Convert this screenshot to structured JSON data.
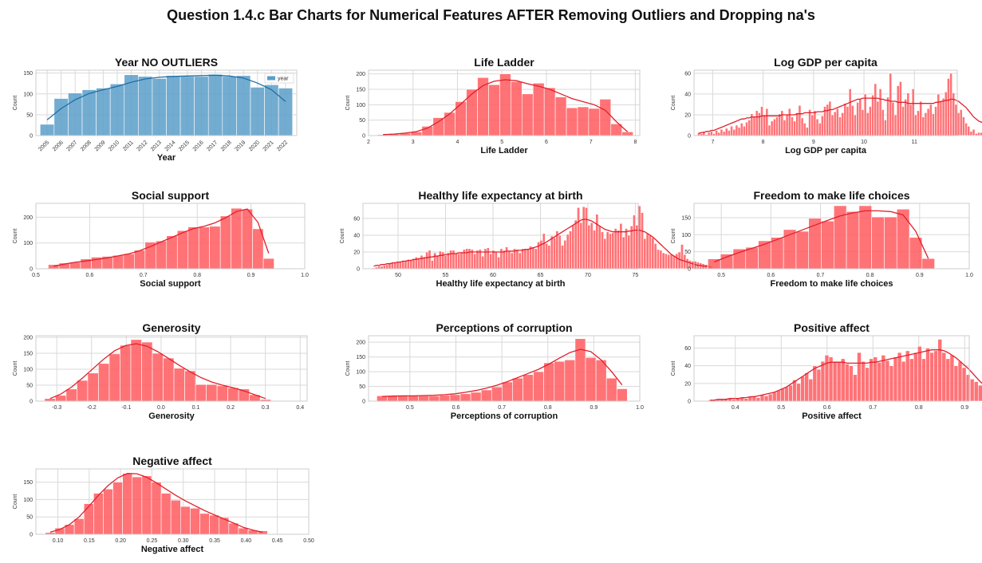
{
  "suptitle": "Question 1.4.c Bar Charts for Numerical Features AFTER Removing Outliers and Dropping na's",
  "chart_data": [
    {
      "type": "bar",
      "title": "Year NO OUTLIERS",
      "xlabel": "Year",
      "ylabel": "Count",
      "legend": {
        "label": "year",
        "placement": "top-right"
      },
      "bar_color": "#5a9ec9",
      "kde_color": "#1f6fa5",
      "categorical_ticks": true,
      "categories": [
        "2005",
        "2006",
        "2007",
        "2008",
        "2009",
        "2010",
        "2011",
        "2012",
        "2013",
        "2014",
        "2015",
        "2016",
        "2017",
        "2018",
        "2019",
        "2020",
        "2021",
        "2022"
      ],
      "values": [
        27,
        89,
        102,
        110,
        114,
        124,
        146,
        142,
        137,
        144,
        142,
        142,
        147,
        142,
        144,
        116,
        122,
        114
      ],
      "kde": [
        38,
        65,
        86,
        101,
        110,
        118,
        128,
        136,
        140,
        142,
        143,
        144,
        145,
        143,
        138,
        126,
        110,
        82
      ],
      "yticks": [
        0,
        50,
        100,
        150
      ],
      "ylim": [
        0,
        157
      ]
    },
    {
      "type": "bar",
      "title": "Life Ladder",
      "xlabel": "Life Ladder",
      "ylabel": "Count",
      "x_start": 2.2,
      "bin_width": 0.25,
      "values": [
        3,
        5,
        8,
        12,
        30,
        58,
        75,
        110,
        150,
        188,
        165,
        200,
        175,
        135,
        170,
        155,
        125,
        90,
        93,
        88,
        118,
        38,
        12
      ],
      "kde": [
        3,
        5,
        8,
        13,
        24,
        45,
        70,
        102,
        135,
        162,
        176,
        181,
        178,
        168,
        160,
        150,
        135,
        120,
        110,
        100,
        82,
        45,
        12
      ],
      "xlim": [
        2.0,
        8.1
      ],
      "xticks": [
        2,
        3,
        4,
        5,
        6,
        7,
        8
      ],
      "yticks": [
        0,
        50,
        100,
        150,
        200
      ],
      "ylim": [
        0,
        212
      ]
    },
    {
      "type": "bar",
      "title": "Log GDP per capita",
      "xlabel": "Log GDP per capita",
      "ylabel": "Count",
      "x_start": 6.7,
      "bin_width": 0.05,
      "values": [
        3,
        2,
        4,
        1,
        3,
        4,
        2,
        5,
        3,
        6,
        4,
        7,
        5,
        9,
        6,
        10,
        8,
        12,
        9,
        13,
        15,
        21,
        18,
        24,
        22,
        28,
        20,
        26,
        10,
        14,
        16,
        18,
        21,
        24,
        15,
        20,
        26,
        18,
        14,
        22,
        29,
        17,
        12,
        8,
        25,
        20,
        24,
        16,
        12,
        19,
        28,
        30,
        33,
        20,
        23,
        26,
        18,
        22,
        31,
        28,
        45,
        29,
        20,
        32,
        35,
        25,
        40,
        22,
        28,
        39,
        50,
        33,
        45,
        25,
        15,
        37,
        60,
        32,
        20,
        48,
        52,
        28,
        35,
        41,
        30,
        45,
        20,
        24,
        33,
        18,
        22,
        26,
        30,
        21,
        28,
        40,
        33,
        36,
        42,
        55,
        60,
        41,
        30,
        22,
        25,
        18,
        12,
        9,
        4,
        6,
        2,
        3,
        3,
        5,
        4,
        3,
        5,
        12
      ],
      "kde": [
        2,
        3,
        3,
        4,
        4,
        5,
        5,
        6,
        7,
        8,
        9,
        10,
        11,
        12,
        13,
        14,
        15,
        16,
        16,
        17,
        17,
        18,
        18,
        18,
        18,
        19,
        19,
        19,
        19,
        19,
        19,
        19,
        19,
        20,
        20,
        20,
        20,
        20,
        20,
        21,
        21,
        21,
        22,
        22,
        22,
        22,
        22,
        23,
        23,
        23,
        24,
        24,
        25,
        25,
        26,
        27,
        28,
        29,
        30,
        31,
        32,
        33,
        34,
        35,
        35,
        36,
        36,
        36,
        36,
        36,
        36,
        36,
        35,
        35,
        34,
        34,
        33,
        33,
        33,
        32,
        32,
        32,
        32,
        31,
        31,
        31,
        31,
        31,
        31,
        31,
        31,
        31,
        31,
        31,
        32,
        32,
        33,
        33,
        34,
        34,
        35,
        35,
        34,
        33,
        31,
        29,
        27,
        24,
        21,
        18,
        16,
        14,
        13,
        12,
        11,
        11,
        11,
        11,
        11,
        11,
        11,
        12
      ],
      "xlim": [
        6.63,
        11.85
      ],
      "xticks": [
        7,
        8,
        9,
        10,
        11
      ],
      "yticks": [
        0,
        20,
        40,
        60
      ],
      "ylim": [
        0,
        63
      ]
    },
    {
      "type": "bar",
      "title": "Social support",
      "xlabel": "Social support",
      "ylabel": "Count",
      "x_start": 0.523,
      "bin_width": 0.02,
      "values": [
        16,
        22,
        25,
        38,
        45,
        48,
        52,
        58,
        72,
        103,
        108,
        128,
        148,
        162,
        162,
        165,
        205,
        235,
        232,
        155,
        40
      ],
      "kde": [
        10,
        18,
        25,
        30,
        36,
        42,
        50,
        58,
        70,
        86,
        104,
        122,
        140,
        156,
        165,
        178,
        198,
        222,
        232,
        180,
        60
      ],
      "xlim": [
        0.5,
        1.0
      ],
      "xticks": [
        0.5,
        0.6,
        0.7,
        0.8,
        0.9,
        1.0
      ],
      "yticks": [
        0,
        100,
        200
      ],
      "ylim": [
        0,
        254
      ]
    },
    {
      "type": "bar",
      "title": "Healthy life expectancy at birth",
      "xlabel": "Healthy life expectancy at birth",
      "ylabel": "Count",
      "x_start": 47.3,
      "bin_width": 0.28,
      "values": [
        1,
        2,
        3,
        3,
        4,
        5,
        6,
        7,
        7,
        8,
        8,
        9,
        10,
        11,
        10,
        12,
        14,
        13,
        16,
        14,
        20,
        22,
        10,
        19,
        15,
        21,
        20,
        16,
        19,
        22,
        22,
        19,
        18,
        20,
        23,
        24,
        24,
        23,
        18,
        22,
        23,
        15,
        24,
        25,
        18,
        22,
        20,
        14,
        24,
        22,
        26,
        21,
        19,
        24,
        23,
        19,
        24,
        24,
        23,
        27,
        26,
        24,
        32,
        34,
        42,
        30,
        28,
        39,
        37,
        45,
        40,
        28,
        34,
        41,
        45,
        52,
        58,
        73,
        55,
        74,
        73,
        52,
        55,
        46,
        65,
        51,
        44,
        36,
        44,
        42,
        43,
        48,
        46,
        54,
        38,
        48,
        40,
        51,
        64,
        52,
        75,
        67,
        36,
        42,
        40,
        37,
        30,
        23,
        22,
        19,
        18,
        17,
        17,
        16,
        18,
        20,
        29,
        17,
        12,
        10,
        9,
        9,
        8,
        7,
        6,
        5,
        4,
        3
      ],
      "kde": [
        3,
        4,
        4,
        5,
        5,
        6,
        6,
        7,
        7,
        8,
        8,
        9,
        9,
        10,
        10,
        11,
        11,
        12,
        12,
        13,
        13,
        14,
        14,
        15,
        15,
        16,
        16,
        17,
        17,
        18,
        18,
        18,
        19,
        19,
        19,
        19,
        20,
        20,
        20,
        20,
        20,
        20,
        20,
        20,
        20,
        20,
        20,
        20,
        20,
        20,
        21,
        21,
        21,
        21,
        22,
        22,
        22,
        23,
        23,
        24,
        25,
        26,
        27,
        29,
        30,
        32,
        34,
        36,
        38,
        40,
        42,
        44,
        46,
        48,
        50,
        52,
        54,
        56,
        58,
        59,
        59,
        58,
        57,
        55,
        53,
        51,
        49,
        47,
        46,
        45,
        44,
        44,
        44,
        44,
        44,
        44,
        45,
        45,
        46,
        46,
        46,
        45,
        44,
        42,
        40,
        38,
        35,
        32,
        29,
        26,
        23,
        20,
        17,
        15,
        13,
        11,
        10,
        9,
        8,
        7,
        6,
        5,
        4,
        4,
        3,
        3,
        3,
        2
      ],
      "xlim": [
        46.3,
        75.3
      ],
      "xticks": [
        50,
        55,
        60,
        65,
        70,
        75
      ],
      "yticks": [
        0,
        20,
        40,
        60
      ],
      "ylim": [
        0,
        78
      ]
    },
    {
      "type": "bar",
      "title": "Freedom to make life choices",
      "xlabel": "Freedom to make life choices",
      "ylabel": "Count",
      "x_start": 0.473,
      "bin_width": 0.0254,
      "values": [
        29,
        43,
        58,
        63,
        82,
        92,
        115,
        110,
        148,
        140,
        185,
        168,
        185,
        152,
        152,
        175,
        92,
        30
      ],
      "kde": [
        20,
        35,
        48,
        60,
        72,
        86,
        100,
        114,
        128,
        142,
        155,
        164,
        170,
        170,
        168,
        158,
        110,
        30
      ],
      "xlim": [
        0.445,
        1.0
      ],
      "xticks": [
        0.5,
        0.6,
        0.7,
        0.8,
        0.9,
        1.0
      ],
      "yticks": [
        0,
        50,
        100,
        150
      ],
      "ylim": [
        0,
        192
      ]
    },
    {
      "type": "bar",
      "title": "Generosity",
      "xlabel": "Generosity",
      "ylabel": "Count",
      "x_start": -0.335,
      "bin_width": 0.031,
      "values": [
        8,
        18,
        38,
        65,
        88,
        118,
        148,
        175,
        193,
        185,
        150,
        135,
        103,
        95,
        52,
        52,
        48,
        42,
        38,
        20,
        5
      ],
      "kde": [
        8,
        22,
        44,
        72,
        102,
        132,
        158,
        174,
        180,
        172,
        155,
        134,
        112,
        92,
        74,
        60,
        50,
        42,
        32,
        20,
        8
      ],
      "xlim": [
        -0.36,
        0.42
      ],
      "xticks": [
        -0.3,
        -0.2,
        -0.1,
        0.0,
        0.1,
        0.2,
        0.3,
        0.4
      ],
      "yticks": [
        0,
        50,
        100,
        150,
        200
      ],
      "ylim": [
        0,
        205
      ]
    },
    {
      "type": "bar",
      "title": "Perceptions of corruption",
      "xlabel": "Perceptions of corruption",
      "ylabel": "Count",
      "x_start": 0.428,
      "bin_width": 0.0227,
      "values": [
        18,
        18,
        18,
        18,
        18,
        18,
        20,
        22,
        25,
        30,
        38,
        48,
        65,
        78,
        90,
        100,
        130,
        135,
        140,
        212,
        148,
        140,
        78,
        42
      ],
      "kde": [
        16,
        17,
        18,
        18,
        19,
        20,
        22,
        25,
        30,
        36,
        44,
        54,
        66,
        80,
        94,
        108,
        126,
        146,
        165,
        176,
        168,
        140,
        100,
        55
      ],
      "xlim": [
        0.41,
        1.0
      ],
      "xticks": [
        0.5,
        0.6,
        0.7,
        0.8,
        0.9,
        1.0
      ],
      "yticks": [
        0,
        50,
        100,
        150,
        200
      ],
      "ylim": [
        0,
        222
      ]
    },
    {
      "type": "bar",
      "title": "Positive affect",
      "xlabel": "Positive affect",
      "ylabel": "Count",
      "x_start": 0.34,
      "bin_width": 0.0088,
      "values": [
        1,
        1,
        2,
        2,
        3,
        3,
        2,
        3,
        4,
        3,
        5,
        6,
        4,
        7,
        6,
        8,
        10,
        12,
        14,
        16,
        18,
        24,
        20,
        28,
        32,
        25,
        40,
        36,
        45,
        52,
        50,
        45,
        44,
        48,
        42,
        40,
        30,
        55,
        45,
        38,
        48,
        50,
        44,
        52,
        46,
        40,
        50,
        55,
        45,
        57,
        48,
        55,
        62,
        48,
        60,
        55,
        57,
        70,
        55,
        48,
        52,
        40,
        45,
        38,
        30,
        25,
        22,
        18,
        14,
        12,
        9,
        8,
        5,
        4,
        3,
        2,
        2,
        1
      ],
      "kde": [
        1,
        1,
        2,
        2,
        2,
        3,
        3,
        3,
        4,
        4,
        5,
        5,
        6,
        7,
        8,
        9,
        10,
        12,
        14,
        16,
        19,
        22,
        25,
        28,
        31,
        34,
        37,
        39,
        41,
        43,
        44,
        44,
        44,
        44,
        43,
        43,
        43,
        43,
        43,
        43,
        44,
        44,
        45,
        46,
        47,
        48,
        49,
        50,
        51,
        52,
        53,
        54,
        55,
        56,
        57,
        58,
        58,
        58,
        57,
        55,
        52,
        49,
        45,
        41,
        37,
        32,
        27,
        22,
        18,
        14,
        11,
        8,
        6,
        4,
        3,
        2,
        2,
        1
      ],
      "xlim": [
        0.31,
        0.91
      ],
      "xticks": [
        0.4,
        0.5,
        0.6,
        0.7,
        0.8,
        0.9
      ],
      "yticks": [
        0,
        20,
        40,
        60
      ],
      "ylim": [
        0,
        74
      ]
    },
    {
      "type": "bar",
      "title": "Negative affect",
      "xlabel": "Negative affect",
      "ylabel": "Count",
      "x_start": 0.08,
      "bin_width": 0.0154,
      "values": [
        5,
        18,
        28,
        45,
        88,
        118,
        130,
        150,
        175,
        165,
        168,
        150,
        118,
        98,
        80,
        75,
        60,
        55,
        48,
        32,
        18,
        12,
        10
      ],
      "kde": [
        6,
        14,
        28,
        50,
        80,
        112,
        140,
        162,
        175,
        174,
        164,
        148,
        130,
        112,
        96,
        82,
        68,
        56,
        44,
        32,
        20,
        12,
        6
      ],
      "xlim": [
        0.065,
        0.5
      ],
      "xticks": [
        0.1,
        0.15,
        0.2,
        0.25,
        0.3,
        0.35,
        0.4,
        0.45,
        0.5
      ],
      "yticks": [
        0,
        50,
        100,
        150
      ],
      "ylim": [
        0,
        188
      ]
    }
  ]
}
